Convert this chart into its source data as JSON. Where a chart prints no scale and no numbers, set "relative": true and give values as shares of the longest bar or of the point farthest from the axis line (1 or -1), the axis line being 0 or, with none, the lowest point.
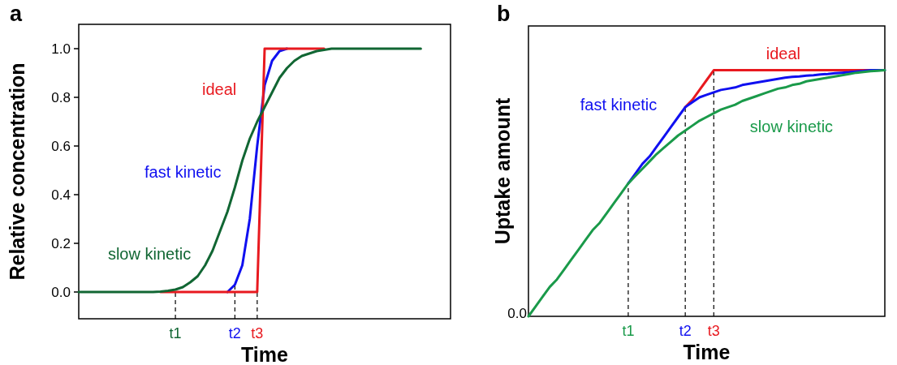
{
  "chart_data": [
    {
      "type": "line",
      "title": "a",
      "xlabel": "Time",
      "ylabel": "Relative concentration",
      "ylim": [
        -0.11,
        1.1
      ],
      "yticks": [
        {
          "value": 0,
          "label": "0.0"
        },
        {
          "value": 0.2,
          "label": "0.2"
        },
        {
          "value": 0.4,
          "label": "0.4"
        },
        {
          "value": 0.6,
          "label": "0.6"
        },
        {
          "value": 0.8,
          "label": "0.8"
        },
        {
          "value": 1,
          "label": "1.0"
        }
      ],
      "grid": false,
      "line_style": "solid",
      "marker": "none",
      "categories": [
        null,
        null,
        null,
        null,
        null,
        null,
        null,
        null,
        null,
        null,
        null,
        null,
        null,
        "t1",
        null,
        null,
        null,
        null,
        null,
        null,
        null,
        "t2",
        null,
        null,
        "t3",
        null,
        null,
        null,
        null,
        null,
        null,
        null,
        null,
        null,
        null,
        null,
        null,
        null,
        null,
        null,
        null,
        null,
        null,
        null,
        null,
        null,
        null,
        null,
        null,
        null,
        null
      ],
      "series": [
        {
          "name": "fast kinetic",
          "color": "#1010f0",
          "values": [
            null,
            null,
            null,
            null,
            null,
            null,
            null,
            null,
            null,
            null,
            null,
            null,
            null,
            null,
            null,
            null,
            null,
            null,
            null,
            null,
            0,
            0.03,
            0.11,
            0.3,
            0.6,
            0.85,
            0.95,
            0.99,
            1,
            null,
            null,
            null,
            null,
            null,
            null,
            null,
            null,
            null,
            null,
            null,
            null,
            null,
            null,
            null,
            null,
            null,
            null,
            null,
            null,
            null,
            null
          ]
        },
        {
          "name": "ideal",
          "color": "#e8191f",
          "values": [
            null,
            null,
            null,
            null,
            null,
            null,
            null,
            null,
            null,
            null,
            null,
            0,
            0,
            0,
            0,
            0,
            0,
            0,
            0,
            0,
            0,
            0,
            0,
            0,
            0,
            1,
            1,
            1,
            1,
            1,
            1,
            1,
            1,
            1,
            null,
            null,
            null,
            null,
            null,
            null,
            null,
            null,
            null,
            null,
            null,
            null,
            null,
            null,
            null,
            null,
            null
          ]
        },
        {
          "name": "slow kinetic",
          "color": "#116633",
          "values": [
            0,
            0,
            0,
            0,
            0,
            0,
            0,
            0,
            0,
            0,
            0,
            0.002,
            0.005,
            0.01,
            0.02,
            0.04,
            0.065,
            0.11,
            0.17,
            0.25,
            0.33,
            0.43,
            0.54,
            0.63,
            0.7,
            0.76,
            0.82,
            0.88,
            0.92,
            0.95,
            0.97,
            0.98,
            0.99,
            0.995,
            1,
            1,
            1,
            1,
            1,
            1,
            1,
            1,
            1,
            1,
            1,
            1,
            1,
            null,
            null,
            null,
            null
          ]
        }
      ],
      "ref_lines": [
        {
          "axis": "x",
          "value": "t1",
          "line_style": "dashed"
        },
        {
          "axis": "x",
          "value": "t2",
          "line_style": "dashed"
        },
        {
          "axis": "x",
          "value": "t3",
          "line_style": "dashed"
        }
      ]
    },
    {
      "type": "line",
      "title": "b",
      "xlabel": "Time",
      "ylabel": "Uptake amount",
      "relative": true,
      "tick_labels": "x",
      "grid": false,
      "line_style": "solid",
      "marker": "none",
      "annotations": [
        "0.0"
      ],
      "categories": [
        null,
        null,
        null,
        null,
        null,
        null,
        null,
        null,
        null,
        null,
        null,
        null,
        null,
        null,
        "t1",
        null,
        null,
        null,
        null,
        null,
        null,
        null,
        "t2",
        null,
        null,
        null,
        "t3",
        null,
        null,
        null,
        null,
        null,
        null,
        null,
        null,
        null,
        null,
        null,
        null,
        null,
        null,
        null,
        null,
        null,
        null,
        null,
        null,
        null,
        null,
        null,
        null
      ],
      "series": [
        {
          "name": "ideal",
          "color": "#e8191f",
          "values": [
            null,
            null,
            null,
            null,
            null,
            null,
            null,
            null,
            null,
            null,
            null,
            null,
            null,
            null,
            null,
            null,
            null,
            null,
            null,
            null,
            null,
            null,
            0.85,
            0.88,
            0.92,
            0.96,
            1,
            1,
            1,
            1,
            1,
            1,
            1,
            1,
            1,
            1,
            1,
            1,
            1,
            1,
            1,
            1,
            1,
            1,
            1,
            1,
            1,
            1,
            1,
            null,
            null
          ]
        },
        {
          "name": "fast kinetic",
          "color": "#1010f0",
          "values": [
            null,
            null,
            null,
            null,
            null,
            null,
            null,
            null,
            null,
            null,
            null,
            null,
            null,
            null,
            0.54,
            0.58,
            0.62,
            0.65,
            0.69,
            0.73,
            0.77,
            0.81,
            0.85,
            0.87,
            0.89,
            0.9,
            0.91,
            0.92,
            0.925,
            0.93,
            0.94,
            0.945,
            0.95,
            0.955,
            0.96,
            0.965,
            0.97,
            0.973,
            0.975,
            0.978,
            0.98,
            0.983,
            0.985,
            0.988,
            0.99,
            0.992,
            0.995,
            0.997,
            1,
            1,
            1
          ]
        },
        {
          "name": "slow kinetic",
          "color": "#1a9a4a",
          "values": [
            0,
            0.04,
            0.08,
            0.12,
            0.15,
            0.19,
            0.23,
            0.27,
            0.31,
            0.35,
            0.38,
            0.42,
            0.46,
            0.5,
            0.54,
            0.57,
            0.6,
            0.63,
            0.66,
            0.685,
            0.71,
            0.735,
            0.755,
            0.775,
            0.795,
            0.81,
            0.825,
            0.84,
            0.85,
            0.86,
            0.875,
            0.885,
            0.895,
            0.905,
            0.915,
            0.925,
            0.93,
            0.94,
            0.945,
            0.955,
            0.96,
            0.965,
            0.97,
            0.975,
            0.98,
            0.985,
            0.99,
            0.993,
            0.996,
            0.998,
            1
          ]
        }
      ],
      "ref_lines": [
        {
          "axis": "x",
          "value": "t1",
          "line_style": "dashed"
        },
        {
          "axis": "x",
          "value": "t2",
          "line_style": "dashed"
        },
        {
          "axis": "x",
          "value": "t3",
          "line_style": "dashed"
        }
      ]
    }
  ]
}
